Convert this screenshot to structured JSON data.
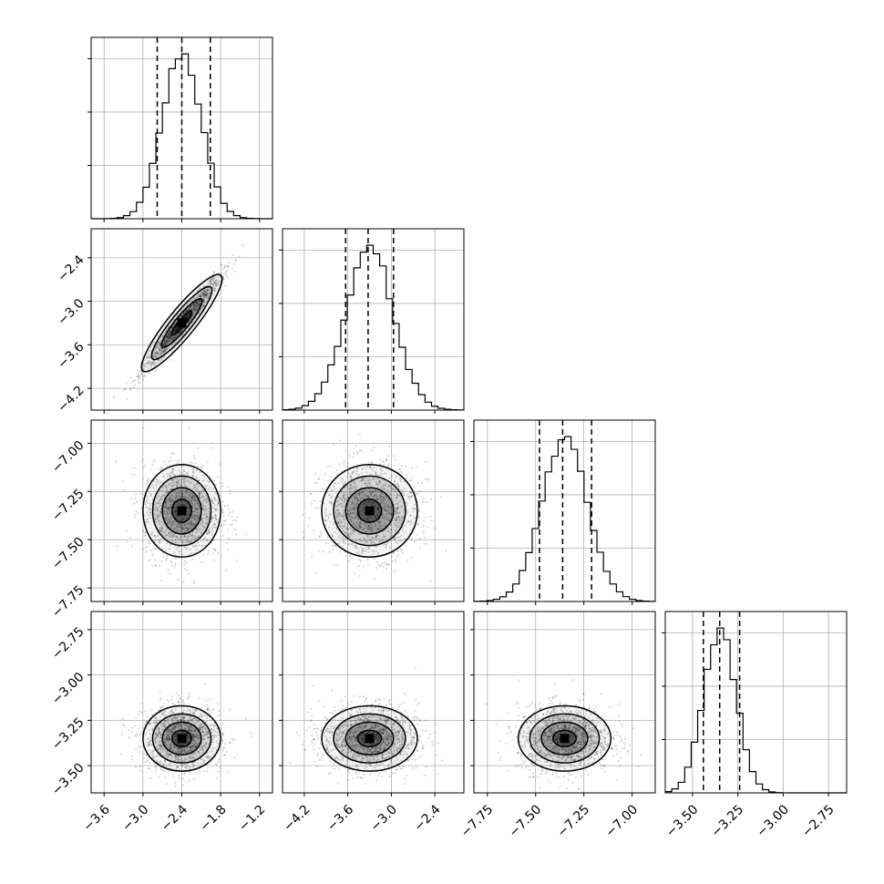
{
  "chart_data": {
    "type": "corner",
    "grid": true,
    "quantile_line_style": "dashed",
    "parameters": [
      {
        "mean": -2.4,
        "sd": 0.3,
        "range": [
          -3.8,
          -1.0
        ],
        "quantiles": [
          -2.78,
          -2.4,
          -1.96
        ],
        "ticks": [
          -3.6,
          -3.0,
          -2.4,
          -1.8,
          -1.2
        ],
        "tick_labels": [
          "−3.6",
          "−3.0",
          "−2.4",
          "−1.8",
          "−1.2"
        ]
      },
      {
        "mean": -3.3,
        "sd": 0.33,
        "range": [
          -4.5,
          -2.0
        ],
        "quantiles": [
          -3.63,
          -3.32,
          -2.97
        ],
        "ticks": [
          -4.2,
          -3.6,
          -3.0,
          -2.4
        ],
        "tick_labels": [
          "−4.2",
          "−3.6",
          "−3.0",
          "−2.4"
        ]
      },
      {
        "mean": -7.35,
        "sd": 0.12,
        "range": [
          -7.82,
          -6.88
        ],
        "quantiles": [
          -7.48,
          -7.36,
          -7.21
        ],
        "ticks": [
          -7.75,
          -7.5,
          -7.25,
          -7.0
        ],
        "tick_labels": [
          "−7.75",
          "−7.50",
          "−7.25",
          "−7.00"
        ]
      },
      {
        "mean": -3.35,
        "sd": 0.09,
        "range": [
          -3.65,
          -2.65
        ],
        "quantiles": [
          -3.44,
          -3.35,
          -3.24
        ],
        "ticks": [
          -3.5,
          -3.25,
          -3.0,
          -2.75
        ],
        "tick_labels": [
          "−3.50",
          "−3.25",
          "−3.00",
          "−2.75"
        ]
      }
    ],
    "correlation": {
      "0-1": 0.97
    }
  }
}
